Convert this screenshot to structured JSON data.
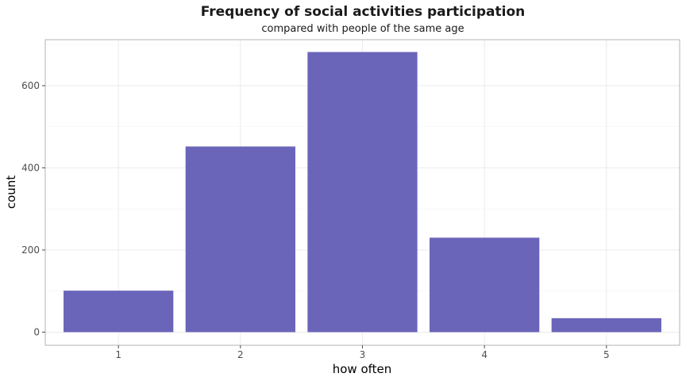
{
  "chart_data": {
    "type": "bar",
    "title": "Frequency of social activities participation",
    "subtitle": "compared with people of the same age",
    "xlabel": "how often",
    "ylabel": "count",
    "categories": [
      "1",
      "2",
      "3",
      "4",
      "5"
    ],
    "values": [
      101,
      452,
      682,
      230,
      34
    ],
    "ylim": [
      -32,
      712
    ],
    "yticks": [
      0,
      200,
      400,
      600
    ],
    "yticks_labels": [
      "0",
      "200",
      "400",
      "600"
    ],
    "grid": true,
    "bar_color": "#6a65b9",
    "grid_color": "#ebebeb",
    "panel_border_color": "#b3b3b3"
  }
}
